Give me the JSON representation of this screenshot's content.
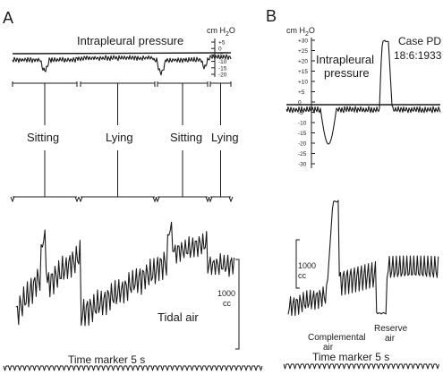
{
  "panel_a": {
    "letter": "A",
    "intrapleural_title": "Intrapleural pressure",
    "scale_unit_prefix": "cm H",
    "scale_unit_sub": "2",
    "scale_unit_suffix": "O",
    "scale_ticks": [
      "+5",
      "0",
      "-5",
      "-10",
      "-15",
      "-20"
    ],
    "postures": [
      "Sitting",
      "Lying",
      "Sitting",
      "Lying"
    ],
    "tidal_label": "Tidal air",
    "vol_scale_value": "1000",
    "vol_scale_unit": "cc",
    "time_marker": "Time marker 5 s"
  },
  "panel_b": {
    "letter": "B",
    "scale_unit_prefix": "cm H",
    "scale_unit_sub": "2",
    "scale_unit_suffix": "O",
    "scale_ticks": [
      "+30",
      "+25",
      "+20",
      "+15",
      "+10",
      "+5",
      "0",
      "-5",
      "-10",
      "-15",
      "-20",
      "-25",
      "-30"
    ],
    "intrapleural_line1": "Intrapleural",
    "intrapleural_line2": "pressure",
    "case_line1": "Case PD",
    "case_line2": "18:6:1933",
    "vol_scale_value": "1000",
    "vol_scale_unit": "cc",
    "complemental_line1": "Complemental",
    "complemental_line2": "air",
    "reserve_line1": "Reserve",
    "reserve_line2": "air",
    "time_marker": "Time marker 5 s"
  }
}
